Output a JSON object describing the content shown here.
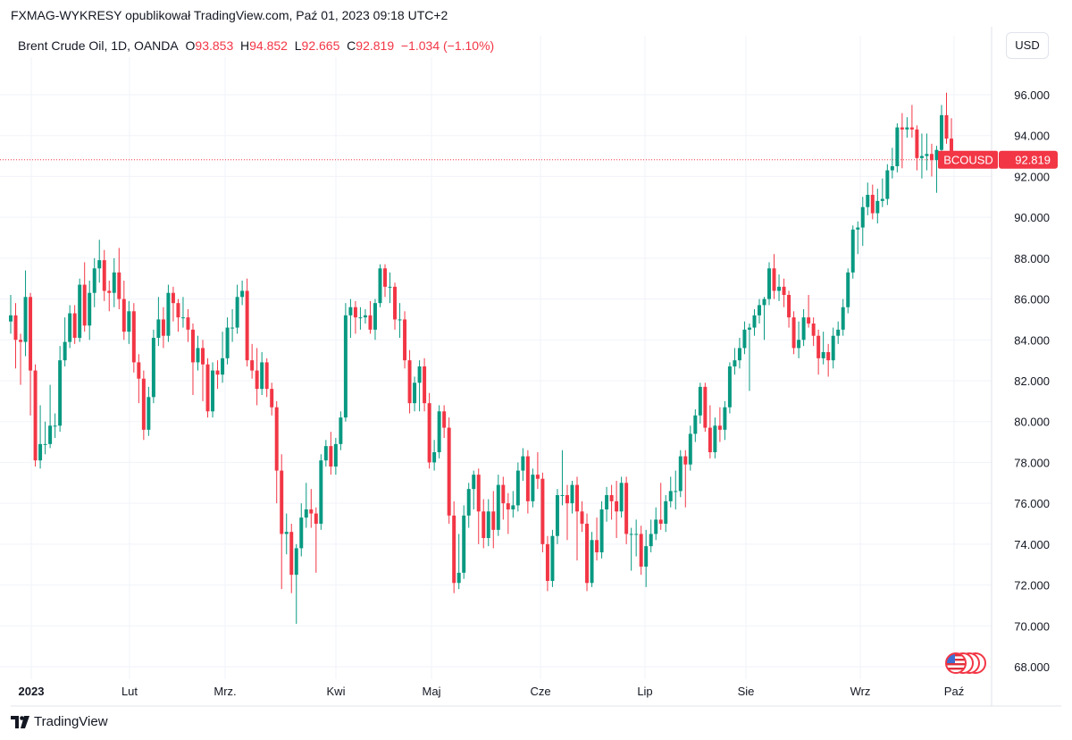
{
  "header": {
    "published": "FXMAG-WYKRESY opublikował TradingView.com, Paź 01, 2023 09:18 UTC+2"
  },
  "legend": {
    "symbol": "Brent Crude Oil, 1D, OANDA",
    "o_label": "O",
    "o": "93.853",
    "h_label": "H",
    "h": "94.852",
    "l_label": "L",
    "l": "92.665",
    "c_label": "C",
    "c": "92.819",
    "change": "−1.034 (−1.10%)"
  },
  "currency_button": "USD",
  "price_tag": {
    "symbol": "BCOUSD",
    "price": "92.819"
  },
  "footer": {
    "brand": "TradingView"
  },
  "icons": {
    "flags": "us-flag-icons",
    "logo": "tradingview-logo-icon"
  },
  "colors": {
    "up": "#089981",
    "down": "#F23645",
    "grid": "#f0f3fa",
    "last_price_line": "#F23645"
  },
  "chart_data": {
    "type": "candlestick",
    "ylim": [
      67,
      97
    ],
    "grid": true,
    "y_ticks": [
      "68.000",
      "70.000",
      "72.000",
      "74.000",
      "76.000",
      "78.000",
      "80.000",
      "82.000",
      "84.000",
      "86.000",
      "88.000",
      "90.000",
      "92.000",
      "94.000",
      "96.000"
    ],
    "x_ticks": [
      "2023",
      "Lut",
      "Mrz.",
      "Kwi",
      "Maj",
      "Cze",
      "Lip",
      "Sie",
      "Wrz",
      "Paź"
    ],
    "last_price": 92.819,
    "candles_ohlc": [
      [
        84.9,
        86.2,
        84.3,
        85.2
      ],
      [
        85.2,
        85.8,
        82.6,
        84.0
      ],
      [
        84.0,
        84.3,
        81.8,
        83.9
      ],
      [
        83.9,
        87.4,
        83.2,
        86.1
      ],
      [
        86.1,
        86.3,
        80.3,
        82.5
      ],
      [
        82.5,
        82.8,
        77.8,
        78.1
      ],
      [
        78.1,
        80.8,
        77.7,
        78.9
      ],
      [
        78.9,
        80.0,
        78.4,
        78.9
      ],
      [
        78.9,
        81.8,
        78.7,
        79.8
      ],
      [
        79.8,
        80.4,
        79.2,
        79.8
      ],
      [
        79.8,
        83.7,
        79.5,
        83.0
      ],
      [
        83.0,
        85.1,
        82.7,
        83.9
      ],
      [
        83.9,
        85.7,
        83.6,
        85.3
      ],
      [
        85.3,
        85.7,
        83.8,
        84.1
      ],
      [
        84.1,
        87.0,
        83.9,
        86.7
      ],
      [
        86.7,
        87.8,
        84.4,
        84.7
      ],
      [
        84.7,
        86.9,
        84.0,
        86.3
      ],
      [
        86.3,
        88.0,
        85.6,
        87.5
      ],
      [
        87.5,
        88.9,
        86.8,
        87.9
      ],
      [
        87.9,
        88.4,
        85.9,
        86.4
      ],
      [
        86.4,
        86.9,
        85.4,
        86.3
      ],
      [
        86.3,
        88.0,
        85.6,
        87.3
      ],
      [
        87.3,
        88.5,
        85.5,
        86.0
      ],
      [
        86.0,
        86.9,
        84.0,
        84.4
      ],
      [
        84.4,
        85.9,
        83.8,
        85.4
      ],
      [
        85.4,
        85.8,
        82.4,
        82.9
      ],
      [
        82.9,
        83.3,
        80.9,
        82.1
      ],
      [
        82.1,
        82.5,
        79.1,
        79.6
      ],
      [
        79.6,
        81.7,
        79.3,
        81.2
      ],
      [
        81.2,
        84.5,
        80.9,
        84.1
      ],
      [
        84.1,
        86.1,
        83.7,
        85.0
      ],
      [
        85.0,
        85.6,
        83.6,
        84.2
      ],
      [
        84.2,
        86.7,
        83.9,
        86.3
      ],
      [
        86.3,
        86.6,
        84.9,
        85.8
      ],
      [
        85.8,
        86.0,
        84.4,
        85.1
      ],
      [
        85.1,
        86.1,
        84.6,
        85.1
      ],
      [
        85.1,
        85.5,
        83.9,
        84.5
      ],
      [
        84.5,
        84.8,
        81.3,
        82.9
      ],
      [
        82.9,
        84.2,
        82.5,
        83.6
      ],
      [
        83.6,
        84.0,
        81.0,
        82.8
      ],
      [
        82.8,
        83.1,
        80.2,
        80.5
      ],
      [
        80.5,
        82.9,
        80.2,
        82.5
      ],
      [
        82.5,
        83.0,
        81.6,
        82.3
      ],
      [
        82.3,
        84.4,
        81.9,
        83.1
      ],
      [
        83.1,
        85.1,
        82.8,
        84.6
      ],
      [
        84.6,
        85.5,
        83.9,
        84.6
      ],
      [
        84.6,
        86.7,
        84.3,
        86.1
      ],
      [
        86.1,
        86.9,
        85.7,
        86.4
      ],
      [
        86.4,
        87.0,
        82.7,
        83.0
      ],
      [
        83.0,
        83.8,
        82.1,
        82.5
      ],
      [
        82.5,
        83.6,
        80.8,
        81.6
      ],
      [
        81.6,
        83.4,
        81.3,
        82.9
      ],
      [
        82.9,
        83.1,
        81.2,
        81.6
      ],
      [
        81.6,
        81.9,
        80.3,
        80.7
      ],
      [
        80.7,
        81.0,
        76.0,
        77.6
      ],
      [
        77.6,
        78.4,
        71.8,
        74.5
      ],
      [
        74.5,
        75.5,
        73.5,
        74.6
      ],
      [
        74.6,
        75.0,
        71.6,
        72.5
      ],
      [
        72.5,
        74.0,
        70.1,
        73.8
      ],
      [
        73.8,
        76.0,
        73.4,
        75.3
      ],
      [
        75.3,
        77.0,
        74.8,
        75.7
      ],
      [
        75.7,
        76.7,
        74.8,
        75.5
      ],
      [
        75.5,
        75.8,
        72.6,
        75.0
      ],
      [
        75.0,
        78.4,
        74.7,
        78.1
      ],
      [
        78.1,
        79.1,
        77.8,
        78.8
      ],
      [
        78.8,
        79.5,
        77.4,
        77.8
      ],
      [
        77.8,
        79.2,
        77.4,
        78.9
      ],
      [
        78.9,
        80.5,
        78.6,
        80.2
      ],
      [
        80.2,
        85.8,
        80.0,
        85.2
      ],
      [
        85.2,
        86.0,
        84.1,
        85.6
      ],
      [
        85.6,
        85.9,
        84.3,
        85.1
      ],
      [
        85.1,
        85.6,
        84.5,
        85.1
      ],
      [
        85.1,
        85.5,
        84.8,
        85.2
      ],
      [
        85.2,
        85.9,
        84.3,
        84.5
      ],
      [
        84.5,
        86.0,
        84.0,
        85.8
      ],
      [
        85.8,
        87.7,
        85.6,
        87.5
      ],
      [
        87.5,
        87.7,
        86.1,
        86.6
      ],
      [
        86.6,
        87.3,
        85.8,
        86.6
      ],
      [
        86.6,
        86.8,
        84.5,
        85.0
      ],
      [
        85.0,
        85.8,
        84.1,
        85.0
      ],
      [
        85.0,
        85.4,
        82.6,
        83.0
      ],
      [
        83.0,
        83.5,
        80.4,
        80.9
      ],
      [
        80.9,
        82.2,
        80.5,
        81.9
      ],
      [
        81.9,
        83.0,
        80.5,
        82.7
      ],
      [
        82.7,
        83.1,
        80.5,
        80.9
      ],
      [
        80.9,
        81.4,
        77.7,
        78.0
      ],
      [
        78.0,
        79.1,
        77.6,
        78.5
      ],
      [
        78.5,
        80.8,
        78.2,
        80.5
      ],
      [
        80.5,
        80.8,
        79.2,
        79.7
      ],
      [
        79.7,
        80.2,
        75.0,
        75.4
      ],
      [
        75.4,
        76.1,
        71.6,
        72.1
      ],
      [
        72.1,
        74.5,
        71.8,
        72.6
      ],
      [
        72.6,
        75.9,
        72.3,
        75.4
      ],
      [
        75.4,
        77.0,
        74.8,
        76.7
      ],
      [
        76.7,
        77.6,
        75.7,
        77.4
      ],
      [
        77.4,
        77.7,
        74.0,
        75.6
      ],
      [
        75.6,
        76.2,
        73.8,
        74.3
      ],
      [
        74.3,
        76.2,
        73.9,
        75.6
      ],
      [
        75.6,
        76.6,
        73.8,
        74.7
      ],
      [
        74.7,
        77.4,
        74.4,
        76.9
      ],
      [
        76.9,
        77.3,
        75.2,
        76.0
      ],
      [
        76.0,
        76.5,
        74.5,
        75.7
      ],
      [
        75.7,
        76.6,
        75.3,
        75.9
      ],
      [
        75.9,
        78.0,
        75.6,
        77.6
      ],
      [
        77.6,
        78.7,
        77.1,
        78.3
      ],
      [
        78.3,
        78.6,
        75.5,
        76.1
      ],
      [
        76.1,
        77.7,
        75.8,
        77.4
      ],
      [
        77.4,
        78.5,
        76.7,
        77.2
      ],
      [
        77.2,
        77.5,
        73.6,
        74.0
      ],
      [
        74.0,
        74.4,
        71.7,
        72.2
      ],
      [
        72.2,
        74.7,
        71.9,
        74.4
      ],
      [
        74.4,
        76.7,
        74.0,
        76.4
      ],
      [
        76.4,
        78.6,
        75.9,
        76.4
      ],
      [
        76.4,
        76.9,
        74.2,
        76.0
      ],
      [
        76.0,
        77.1,
        75.5,
        76.9
      ],
      [
        76.9,
        77.3,
        73.2,
        75.6
      ],
      [
        75.6,
        76.1,
        74.6,
        75.0
      ],
      [
        75.0,
        75.5,
        71.7,
        72.1
      ],
      [
        72.1,
        74.6,
        71.9,
        74.2
      ],
      [
        74.2,
        75.3,
        73.2,
        73.6
      ],
      [
        73.6,
        76.1,
        73.3,
        75.7
      ],
      [
        75.7,
        76.8,
        75.1,
        76.4
      ],
      [
        76.4,
        76.9,
        75.2,
        76.1
      ],
      [
        76.1,
        77.1,
        74.3,
        75.6
      ],
      [
        75.6,
        77.3,
        75.3,
        77.0
      ],
      [
        77.0,
        77.3,
        74.0,
        74.5
      ],
      [
        74.5,
        74.8,
        72.7,
        74.5
      ],
      [
        74.5,
        75.2,
        73.4,
        74.5
      ],
      [
        74.5,
        74.9,
        72.5,
        72.9
      ],
      [
        72.9,
        74.7,
        71.9,
        73.9
      ],
      [
        73.9,
        75.2,
        73.6,
        74.5
      ],
      [
        74.5,
        75.8,
        74.2,
        75.2
      ],
      [
        75.2,
        77.0,
        74.7,
        75.0
      ],
      [
        75.0,
        76.4,
        74.6,
        76.1
      ],
      [
        76.1,
        77.3,
        75.8,
        76.6
      ],
      [
        76.6,
        77.6,
        75.7,
        76.6
      ],
      [
        76.6,
        78.6,
        76.3,
        78.3
      ],
      [
        78.3,
        78.6,
        75.8,
        77.9
      ],
      [
        77.9,
        79.8,
        77.6,
        79.4
      ],
      [
        79.4,
        80.6,
        79.0,
        80.3
      ],
      [
        80.3,
        81.9,
        79.9,
        81.7
      ],
      [
        81.7,
        81.9,
        79.5,
        79.7
      ],
      [
        79.7,
        80.8,
        78.2,
        78.5
      ],
      [
        78.5,
        80.2,
        78.2,
        79.8
      ],
      [
        79.8,
        80.7,
        79.0,
        79.6
      ],
      [
        79.6,
        81.0,
        79.1,
        80.7
      ],
      [
        80.7,
        82.9,
        80.4,
        82.7
      ],
      [
        82.7,
        83.6,
        82.3,
        83.0
      ],
      [
        83.0,
        84.1,
        82.6,
        83.6
      ],
      [
        83.6,
        84.9,
        83.3,
        84.5
      ],
      [
        84.5,
        84.8,
        81.5,
        84.6
      ],
      [
        84.6,
        85.5,
        84.2,
        85.2
      ],
      [
        85.2,
        86.0,
        84.8,
        85.7
      ],
      [
        85.7,
        86.1,
        84.0,
        86.0
      ],
      [
        86.0,
        87.8,
        85.7,
        87.5
      ],
      [
        87.5,
        88.2,
        86.0,
        86.4
      ],
      [
        86.4,
        87.2,
        85.9,
        86.6
      ],
      [
        86.6,
        87.0,
        85.6,
        86.2
      ],
      [
        86.2,
        86.4,
        84.6,
        85.1
      ],
      [
        85.1,
        85.4,
        83.3,
        83.6
      ],
      [
        83.6,
        84.9,
        83.1,
        84.0
      ],
      [
        84.0,
        85.5,
        83.7,
        85.1
      ],
      [
        85.1,
        86.2,
        84.6,
        84.8
      ],
      [
        84.8,
        85.1,
        83.7,
        84.2
      ],
      [
        84.2,
        84.5,
        82.3,
        83.1
      ],
      [
        83.1,
        84.4,
        82.8,
        83.4
      ],
      [
        83.4,
        83.8,
        82.2,
        83.0
      ],
      [
        83.0,
        84.6,
        82.6,
        84.2
      ],
      [
        84.2,
        84.9,
        83.8,
        84.5
      ],
      [
        84.5,
        86.0,
        84.2,
        85.6
      ],
      [
        85.6,
        87.5,
        85.3,
        87.3
      ],
      [
        87.3,
        89.6,
        87.0,
        89.4
      ],
      [
        89.4,
        89.8,
        88.2,
        89.5
      ],
      [
        89.5,
        91.0,
        88.6,
        90.5
      ],
      [
        90.5,
        91.7,
        90.1,
        91.1
      ],
      [
        91.1,
        91.6,
        89.9,
        90.2
      ],
      [
        90.2,
        91.4,
        89.7,
        90.8
      ],
      [
        90.8,
        91.9,
        90.5,
        90.9
      ],
      [
        90.9,
        92.6,
        90.6,
        92.3
      ],
      [
        92.3,
        93.4,
        91.9,
        92.5
      ],
      [
        92.5,
        94.6,
        92.2,
        94.4
      ],
      [
        94.4,
        95.1,
        92.4,
        94.3
      ],
      [
        94.3,
        94.9,
        93.9,
        94.4
      ],
      [
        94.4,
        95.5,
        93.9,
        94.3
      ],
      [
        94.3,
        94.5,
        92.3,
        92.9
      ],
      [
        92.9,
        94.1,
        91.9,
        93.0
      ],
      [
        93.0,
        94.1,
        92.3,
        93.1
      ],
      [
        93.1,
        93.6,
        92.0,
        92.8
      ],
      [
        92.8,
        93.5,
        91.2,
        93.3
      ],
      [
        93.3,
        95.5,
        93.0,
        95.0
      ],
      [
        95.0,
        96.1,
        93.6,
        93.85
      ],
      [
        93.853,
        94.852,
        92.665,
        92.819
      ]
    ]
  }
}
